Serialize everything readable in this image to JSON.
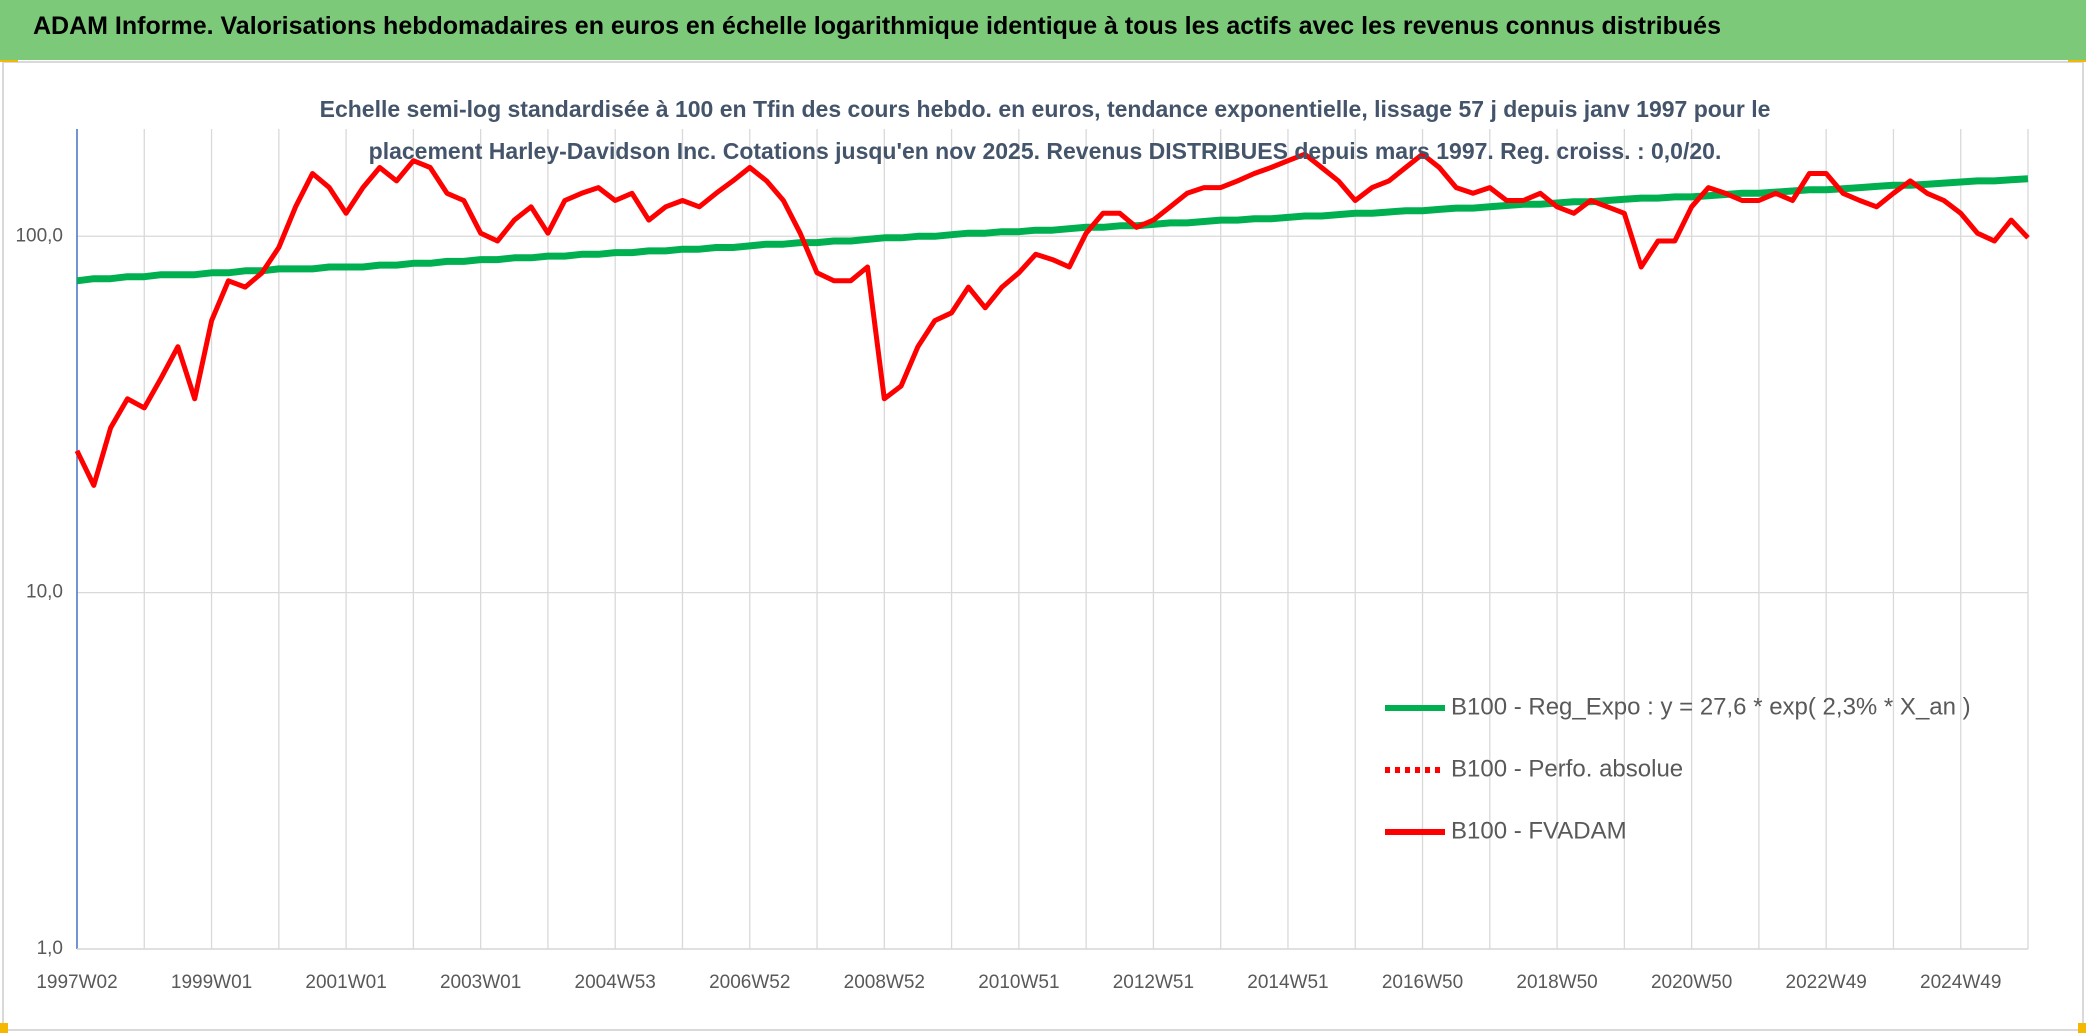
{
  "chart_data": {
    "type": "line",
    "title": "ADAM Informe. Valorisations hebdomadaires en euros en échelle logarithmique identique à tous les actifs avec les revenus connus distribués",
    "subtitle": "Echelle semi-log standardisée à 100 en Tfin des cours hebdo. en euros, tendance exponentielle, lissage 57 j depuis janv 1997 pour le placement Harley-Davidson Inc. Cotations jusqu'en nov 2025. Revenus DISTRIBUES depuis mars 1997. Reg. croiss. : 0,0/20.",
    "log_scale": true,
    "grid": true,
    "legend": "lower right",
    "ylim": [
      1,
      200
    ],
    "yticks": [
      {
        "value": 1,
        "label": "1,0"
      },
      {
        "value": 10,
        "label": "10,0"
      },
      {
        "value": 100,
        "label": "100,0"
      }
    ],
    "categories": [
      "1997W02",
      null,
      null,
      null,
      null,
      null,
      null,
      null,
      "1999W01",
      null,
      null,
      null,
      null,
      null,
      null,
      null,
      "2001W01",
      null,
      null,
      null,
      null,
      null,
      null,
      null,
      "2003W01",
      null,
      null,
      null,
      null,
      null,
      null,
      null,
      "2004W53",
      null,
      null,
      null,
      null,
      null,
      null,
      null,
      "2006W52",
      null,
      null,
      null,
      null,
      null,
      null,
      null,
      "2008W52",
      null,
      null,
      null,
      null,
      null,
      null,
      null,
      "2010W51",
      null,
      null,
      null,
      null,
      null,
      null,
      null,
      "2012W51",
      null,
      null,
      null,
      null,
      null,
      null,
      null,
      "2014W51",
      null,
      null,
      null,
      null,
      null,
      null,
      null,
      "2016W50",
      null,
      null,
      null,
      null,
      null,
      null,
      null,
      "2018W50",
      null,
      null,
      null,
      null,
      null,
      null,
      null,
      "2020W50",
      null,
      null,
      null,
      null,
      null,
      null,
      null,
      "2022W49",
      null,
      null,
      null,
      null,
      null,
      null,
      null,
      "2024W49",
      null,
      null,
      null,
      null
    ],
    "series": [
      {
        "name": "B100 - Reg_Expo : y = 27,6 * exp( 2,3% *  X_an )",
        "color": "#00b050",
        "style": "solid",
        "values": [
          75,
          76,
          76,
          77,
          77,
          78,
          78,
          78,
          79,
          79,
          80,
          80,
          81,
          81,
          81,
          82,
          82,
          82,
          83,
          83,
          84,
          84,
          85,
          85,
          86,
          86,
          87,
          87,
          88,
          88,
          89,
          89,
          90,
          90,
          91,
          91,
          92,
          92,
          93,
          93,
          94,
          95,
          95,
          96,
          96,
          97,
          97,
          98,
          99,
          99,
          100,
          100,
          101,
          102,
          102,
          103,
          103,
          104,
          104,
          105,
          106,
          106,
          107,
          107,
          108,
          109,
          109,
          110,
          111,
          111,
          112,
          112,
          113,
          114,
          114,
          115,
          116,
          116,
          117,
          118,
          118,
          119,
          120,
          120,
          121,
          122,
          123,
          123,
          124,
          125,
          125,
          126,
          127,
          128,
          128,
          129,
          129,
          130,
          131,
          132,
          132,
          133,
          134,
          135,
          135,
          136,
          137,
          138,
          139,
          139,
          140,
          141,
          142,
          143,
          143,
          144,
          145
        ]
      },
      {
        "name": "B100 - Perfo. absolue",
        "color": "#ff0000",
        "style": "dotted",
        "values": [
          null,
          null,
          null,
          null,
          null,
          null,
          null,
          null,
          null,
          null,
          null,
          null,
          null,
          null,
          null,
          null,
          null,
          null,
          null,
          null,
          null,
          null,
          null,
          null,
          null,
          null,
          null,
          null,
          null,
          null,
          null,
          null,
          null,
          null,
          null,
          null,
          null,
          null,
          null,
          null,
          null,
          null,
          null,
          null,
          null,
          null,
          null,
          null,
          null,
          null,
          null,
          null,
          null,
          null,
          null,
          null,
          null,
          null,
          null,
          null,
          null,
          null,
          null,
          null,
          null,
          null,
          null,
          null,
          null,
          null,
          null,
          null,
          null,
          null,
          null,
          null,
          null,
          null,
          null,
          null,
          null,
          null,
          null,
          null,
          null,
          null,
          null,
          null,
          null,
          null,
          null,
          null,
          null,
          null,
          null,
          null,
          null,
          null,
          null,
          null,
          null,
          null,
          null,
          null,
          null,
          null,
          null,
          null,
          null,
          null,
          null,
          null,
          null,
          null,
          null,
          null,
          null
        ]
      },
      {
        "name": "B100 - FVADAM",
        "color": "#ff0000",
        "style": "solid",
        "values": [
          25,
          20,
          29,
          35,
          33,
          40,
          49,
          35,
          58,
          75,
          72,
          79,
          93,
          121,
          150,
          137,
          116,
          137,
          156,
          143,
          163,
          156,
          132,
          126,
          102,
          97,
          111,
          121,
          102,
          126,
          132,
          137,
          126,
          132,
          111,
          121,
          126,
          121,
          132,
          143,
          156,
          143,
          126,
          102,
          79,
          75,
          75,
          82,
          35,
          38,
          49,
          58,
          61,
          72,
          63,
          72,
          79,
          89,
          86,
          82,
          102,
          116,
          116,
          106,
          111,
          121,
          132,
          137,
          137,
          143,
          150,
          156,
          163,
          170,
          156,
          143,
          126,
          137,
          143,
          156,
          170,
          156,
          137,
          132,
          137,
          126,
          126,
          132,
          121,
          116,
          126,
          121,
          116,
          82,
          97,
          97,
          121,
          137,
          132,
          126,
          126,
          132,
          126,
          150,
          150,
          132,
          126,
          121,
          132,
          143,
          132,
          126,
          116,
          102,
          97,
          111,
          99
        ]
      }
    ]
  }
}
